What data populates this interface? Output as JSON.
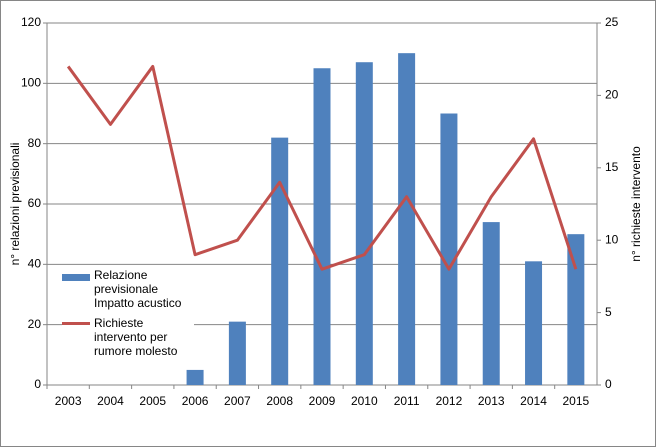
{
  "chart_data": {
    "type": "bar",
    "categories": [
      "2003",
      "2004",
      "2005",
      "2006",
      "2007",
      "2008",
      "2009",
      "2010",
      "2011",
      "2012",
      "2013",
      "2014",
      "2015"
    ],
    "series": [
      {
        "name": "Relazione previsionale Impatto acustico",
        "type": "bar",
        "color": "#4f81bd",
        "values": [
          0,
          0,
          0,
          5,
          21,
          82,
          105,
          107,
          110,
          90,
          54,
          41,
          50
        ]
      },
      {
        "name": "Richieste intervento per rumore molesto",
        "type": "line",
        "axis": "y2",
        "color": "#c0504d",
        "values": [
          22,
          18,
          22,
          9,
          10,
          14,
          8,
          9,
          13,
          8,
          13,
          17,
          8
        ]
      }
    ],
    "ylabel": "n° relazioni previsionali",
    "y2label": "n° richieste intervento",
    "ylim": [
      0,
      120
    ],
    "yticks": [
      0,
      20,
      40,
      60,
      80,
      100,
      120
    ],
    "y2lim": [
      0,
      25
    ],
    "y2ticks": [
      0,
      5,
      10,
      15,
      20,
      25
    ],
    "grid": true
  }
}
